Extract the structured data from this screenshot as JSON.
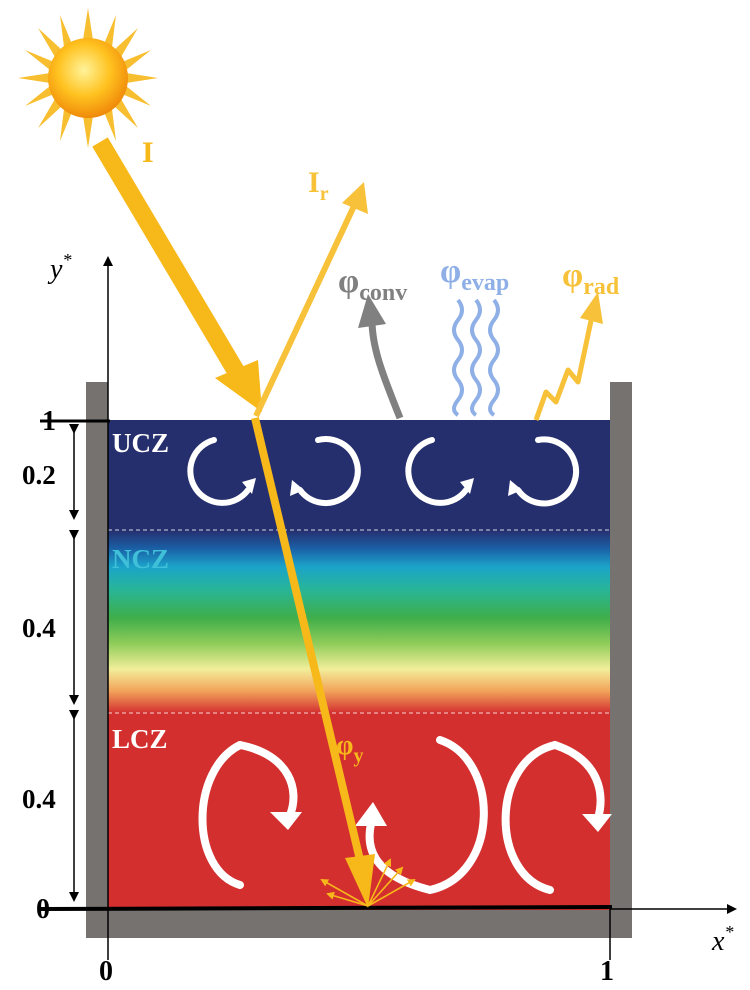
{
  "zones": {
    "ucz": "UCZ",
    "ncz": "NCZ",
    "lcz": "LCZ"
  },
  "axis": {
    "y_label": "y",
    "x_label": "x",
    "star": "*",
    "y_ticks": [
      "1",
      "0"
    ],
    "x_ticks": [
      "0",
      "1"
    ]
  },
  "dimensions": [
    "0.2",
    "0.4",
    "0.4"
  ],
  "radiation": {
    "incident": "I",
    "reflected": "I",
    "reflected_sub": "r",
    "absorbed": "φ",
    "absorbed_sub": "y"
  },
  "fluxes": {
    "phi": "φ",
    "conv_sub": "conv",
    "evap_sub": "evap",
    "rad_sub": "rad"
  },
  "colors": {
    "ucz": "#262f6e",
    "lcz": "#d32f2f",
    "wall": "#767270",
    "sun_ray": "#f7b81a",
    "conv": "#808080",
    "evap": "#8fb0e6",
    "rad": "#f7c23a",
    "ncz_label": "#3fc0d8"
  }
}
